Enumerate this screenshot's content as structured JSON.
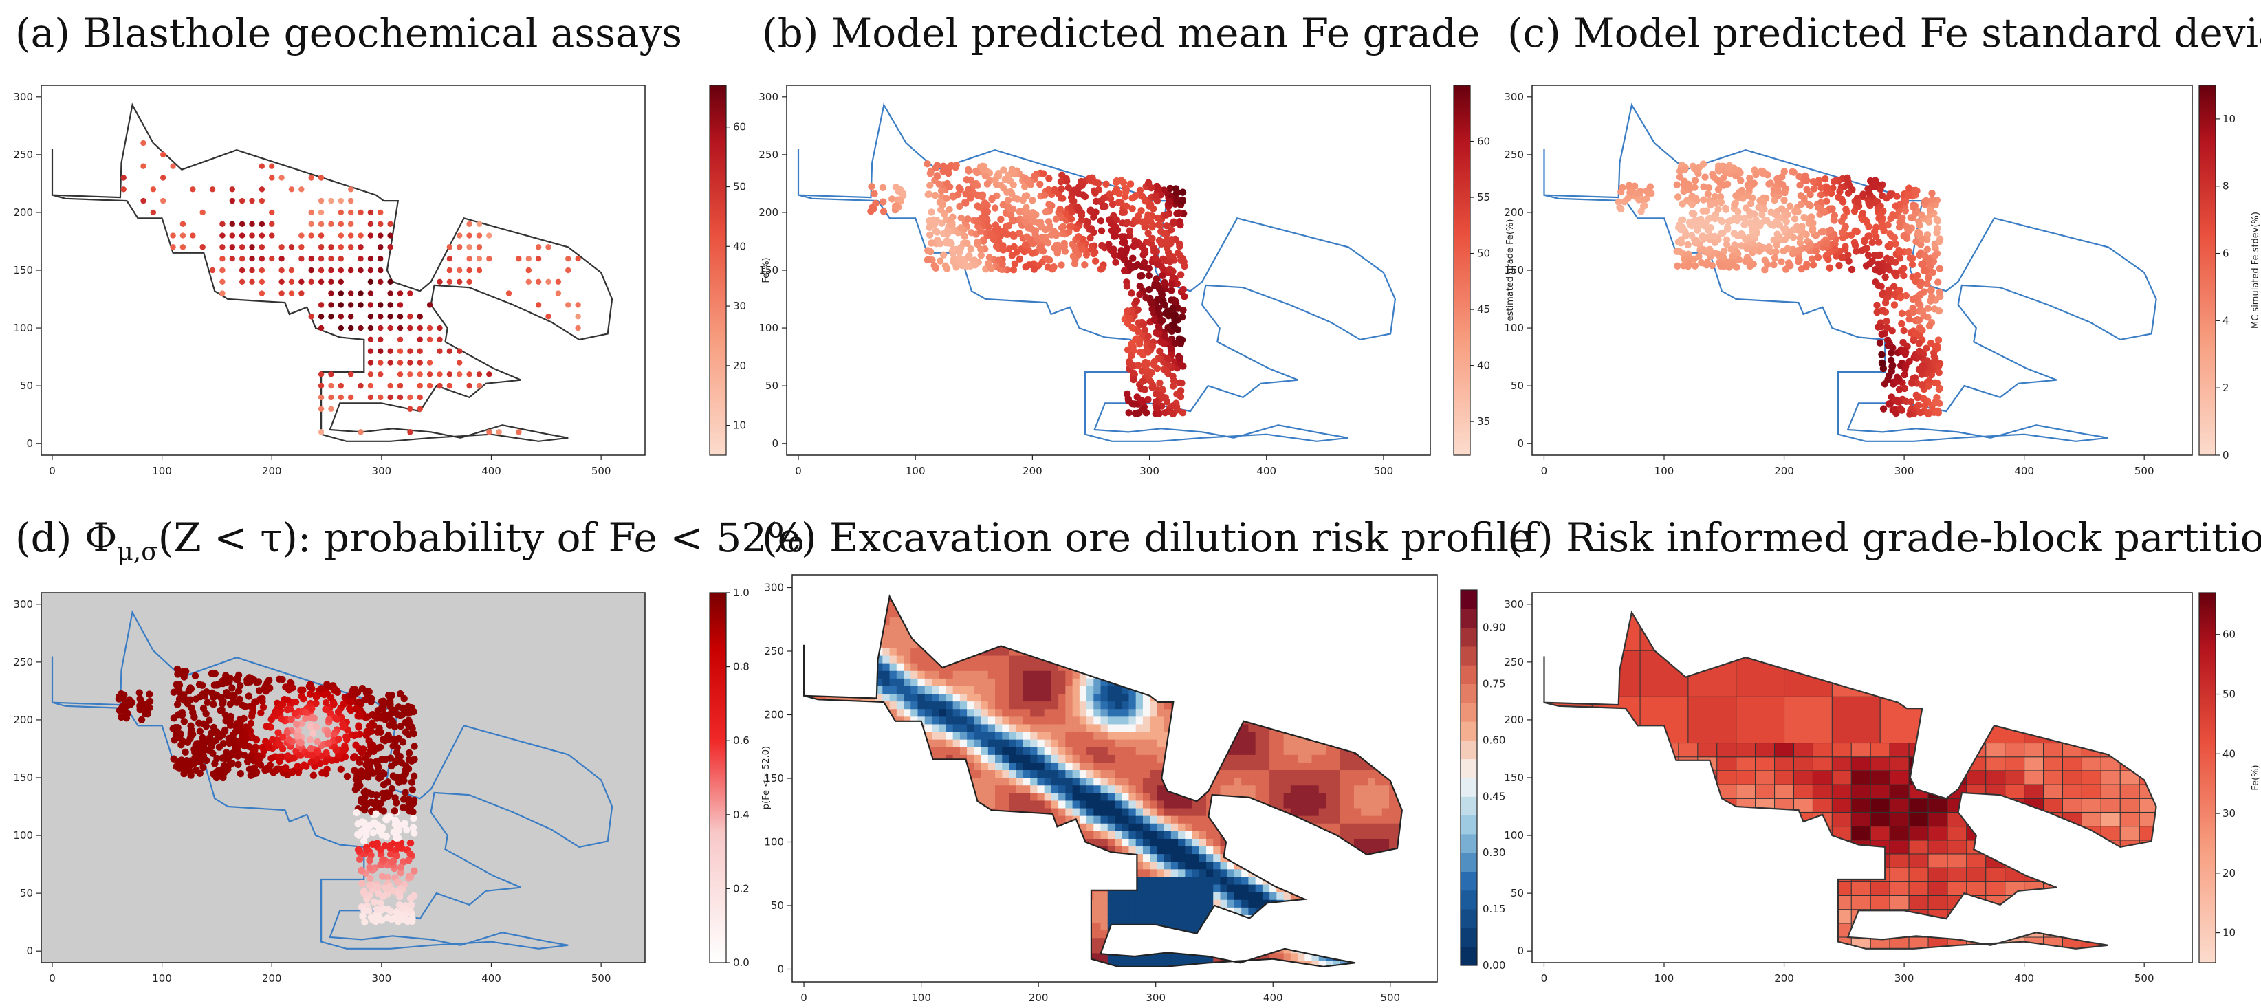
{
  "figure": {
    "xticks": [
      "0",
      "100",
      "200",
      "300",
      "400",
      "500"
    ],
    "yticks": [
      "0",
      "50",
      "100",
      "150",
      "200",
      "250",
      "300"
    ]
  },
  "chart_data": [
    {
      "panel": "a",
      "type": "scatter",
      "title": "(a) Blasthole geochemical assays",
      "colorbar_label": "Fe(%)",
      "colorbar_ticks": [
        "10",
        "20",
        "30",
        "40",
        "50",
        "60"
      ],
      "clim": [
        5,
        67
      ],
      "cmap": "reds",
      "background": "#ffffff",
      "boundary_color": "#333333",
      "xlim": [
        -10,
        540
      ],
      "ylim": [
        -10,
        310
      ]
    },
    {
      "panel": "b",
      "type": "scatter",
      "title": "(b) Model predicted mean Fe grade",
      "colorbar_label": "estimated grade Fe(%)",
      "colorbar_ticks": [
        "35",
        "40",
        "45",
        "50",
        "55",
        "60"
      ],
      "clim": [
        32,
        65
      ],
      "cmap": "reds",
      "background": "#ffffff",
      "boundary_color": "#3b7dc4",
      "xlim": [
        -10,
        540
      ],
      "ylim": [
        -10,
        310
      ]
    },
    {
      "panel": "c",
      "type": "scatter",
      "title": "(c) Model predicted Fe standard deviation",
      "colorbar_label": "MC simulated Fe stdev(%)",
      "colorbar_ticks": [
        "0",
        "2",
        "4",
        "6",
        "8",
        "10"
      ],
      "clim": [
        0,
        11
      ],
      "cmap": "reds",
      "background": "#ffffff",
      "boundary_color": "#3b7dc4",
      "xlim": [
        -10,
        540
      ],
      "ylim": [
        -10,
        310
      ]
    },
    {
      "panel": "d",
      "type": "scatter",
      "title": "(d) Φμ,σ(Z<τ): probability of Fe<52%",
      "title_parts": [
        "(d) Φ",
        "μ,σ",
        "(Z < τ): probability of Fe < 52%"
      ],
      "colorbar_label": "p(Fe <= 52.0)",
      "colorbar_ticks": [
        "0.0",
        "0.2",
        "0.4",
        "0.6",
        "0.8",
        "1.0"
      ],
      "clim": [
        0,
        1
      ],
      "cmap": "reds",
      "background": "#cccccc",
      "boundary_color": "#3b7dc4",
      "xlim": [
        -10,
        540
      ],
      "ylim": [
        -10,
        310
      ]
    },
    {
      "panel": "e",
      "type": "heatmap",
      "title": "(e) Excavation ore dilution risk profile",
      "colorbar_ticks": [
        "0.00",
        "0.15",
        "0.30",
        "0.45",
        "0.60",
        "0.75",
        "0.90"
      ],
      "clim": [
        0,
        1
      ],
      "cmap": "rdbu",
      "background": "#ffffff",
      "xlim": [
        -10,
        540
      ],
      "ylim": [
        -10,
        310
      ]
    },
    {
      "panel": "f",
      "type": "heatmap",
      "title": "(f) Risk informed grade-block partitions",
      "colorbar_label": "Fe(%)",
      "colorbar_ticks": [
        "10",
        "20",
        "30",
        "40",
        "50",
        "60"
      ],
      "clim": [
        5,
        67
      ],
      "cmap": "reds",
      "background": "#ffffff",
      "xlim": [
        -10,
        540
      ],
      "ylim": [
        -10,
        310
      ]
    }
  ]
}
